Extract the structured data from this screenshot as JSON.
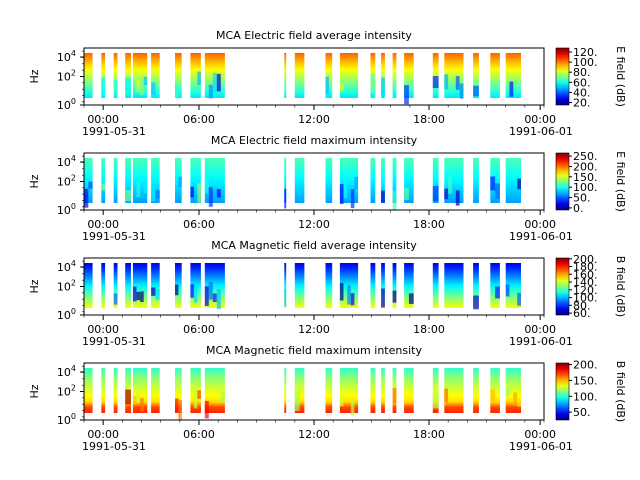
{
  "chart_data": [
    {
      "type": "heatmap",
      "title": "MCA  Electric field average intensity",
      "ylabel": "Hz",
      "y_ticks": [
        "10^0",
        "10^2",
        "10^4"
      ],
      "ylim": [
        "10^0",
        "10^4"
      ],
      "x_ticks": [
        "00:00",
        "06:00",
        "12:00",
        "18:00",
        "00:00"
      ],
      "x_dates": [
        "1991-05-31",
        "1991-06-01"
      ],
      "xlim": [
        "1991-05-31 00:00",
        "1991-06-01 00:00"
      ],
      "colorbar": {
        "label": "E field (dB)",
        "ticks": [
          20,
          40,
          60,
          80,
          100,
          120
        ],
        "tick_labels": [
          "20.",
          "40.",
          "60.",
          "80.",
          "100.",
          "120."
        ],
        "range": [
          15,
          128
        ]
      },
      "colormap": "jet",
      "intensity_low": 0.35,
      "intensity_high": 0.78
    },
    {
      "type": "heatmap",
      "title": "MCA  Electric field maximum intensity",
      "ylabel": "Hz",
      "y_ticks": [
        "10^0",
        "10^2",
        "10^4"
      ],
      "ylim": [
        "10^0",
        "10^4"
      ],
      "x_ticks": [
        "00:00",
        "06:00",
        "12:00",
        "18:00",
        "00:00"
      ],
      "x_dates": [
        "1991-05-31",
        "1991-06-01"
      ],
      "xlim": [
        "1991-05-31 00:00",
        "1991-06-01 00:00"
      ],
      "colorbar": {
        "label": "E field (dB)",
        "ticks": [
          0,
          50,
          100,
          150,
          200,
          250
        ],
        "tick_labels": [
          "0.",
          "50.",
          "100.",
          "150.",
          "200.",
          "250."
        ],
        "range": [
          -10,
          265
        ]
      },
      "colormap": "jet",
      "intensity_low": 0.28,
      "intensity_high": 0.45
    },
    {
      "type": "heatmap",
      "title": "MCA  Magnetic field average intensity",
      "ylabel": "Hz",
      "y_ticks": [
        "10^0",
        "10^2",
        "10^4"
      ],
      "ylim": [
        "10^0",
        "10^4"
      ],
      "x_ticks": [
        "00:00",
        "06:00",
        "12:00",
        "18:00",
        "00:00"
      ],
      "x_dates": [
        "1991-05-31",
        "1991-06-01"
      ],
      "xlim": [
        "1991-05-31 00:00",
        "1991-06-01 00:00"
      ],
      "colorbar": {
        "label": "B field (dB)",
        "ticks": [
          60,
          80,
          100,
          120,
          140,
          160,
          180,
          200
        ],
        "tick_labels": [
          "60.",
          "80.",
          "100.",
          "120.",
          "140.",
          "160.",
          "180.",
          "200."
        ],
        "range": [
          55,
          202
        ]
      },
      "colormap": "jet",
      "intensity_low": 0.62,
      "intensity_high": 0.1
    },
    {
      "type": "heatmap",
      "title": "MCA  Magnetic field maximum intensity",
      "ylabel": "Hz",
      "y_ticks": [
        "10^0",
        "10^2",
        "10^4"
      ],
      "ylim": [
        "10^0",
        "10^4"
      ],
      "x_ticks": [
        "00:00",
        "06:00",
        "12:00",
        "18:00",
        "00:00"
      ],
      "x_dates": [
        "1991-05-31",
        "1991-06-01"
      ],
      "xlim": [
        "1991-05-31 00:00",
        "1991-06-01 00:00"
      ],
      "colorbar": {
        "label": "B field (dB)",
        "ticks": [
          50,
          100,
          150,
          200
        ],
        "tick_labels": [
          "50.",
          "100.",
          "150.",
          "200."
        ],
        "range": [
          25,
          205
        ]
      },
      "colormap": "jet",
      "intensity_low": 0.72,
      "intensity_high": 0.42
    }
  ],
  "data_intervals_hours": [
    [
      0.0,
      0.45
    ],
    [
      0.9,
      1.1
    ],
    [
      1.55,
      1.75
    ],
    [
      2.15,
      2.45
    ],
    [
      2.55,
      3.3
    ],
    [
      3.5,
      3.95
    ],
    [
      4.75,
      5.1
    ],
    [
      5.55,
      6.1
    ],
    [
      6.3,
      7.35
    ],
    [
      10.45,
      10.55
    ],
    [
      11.0,
      11.5
    ],
    [
      12.6,
      12.95
    ],
    [
      13.35,
      14.3
    ],
    [
      14.95,
      15.2
    ],
    [
      15.5,
      15.7
    ],
    [
      16.1,
      16.3
    ],
    [
      16.7,
      17.2
    ],
    [
      18.2,
      18.5
    ],
    [
      18.8,
      19.8
    ],
    [
      20.3,
      20.6
    ],
    [
      21.2,
      21.7
    ],
    [
      22.0,
      22.8
    ]
  ]
}
